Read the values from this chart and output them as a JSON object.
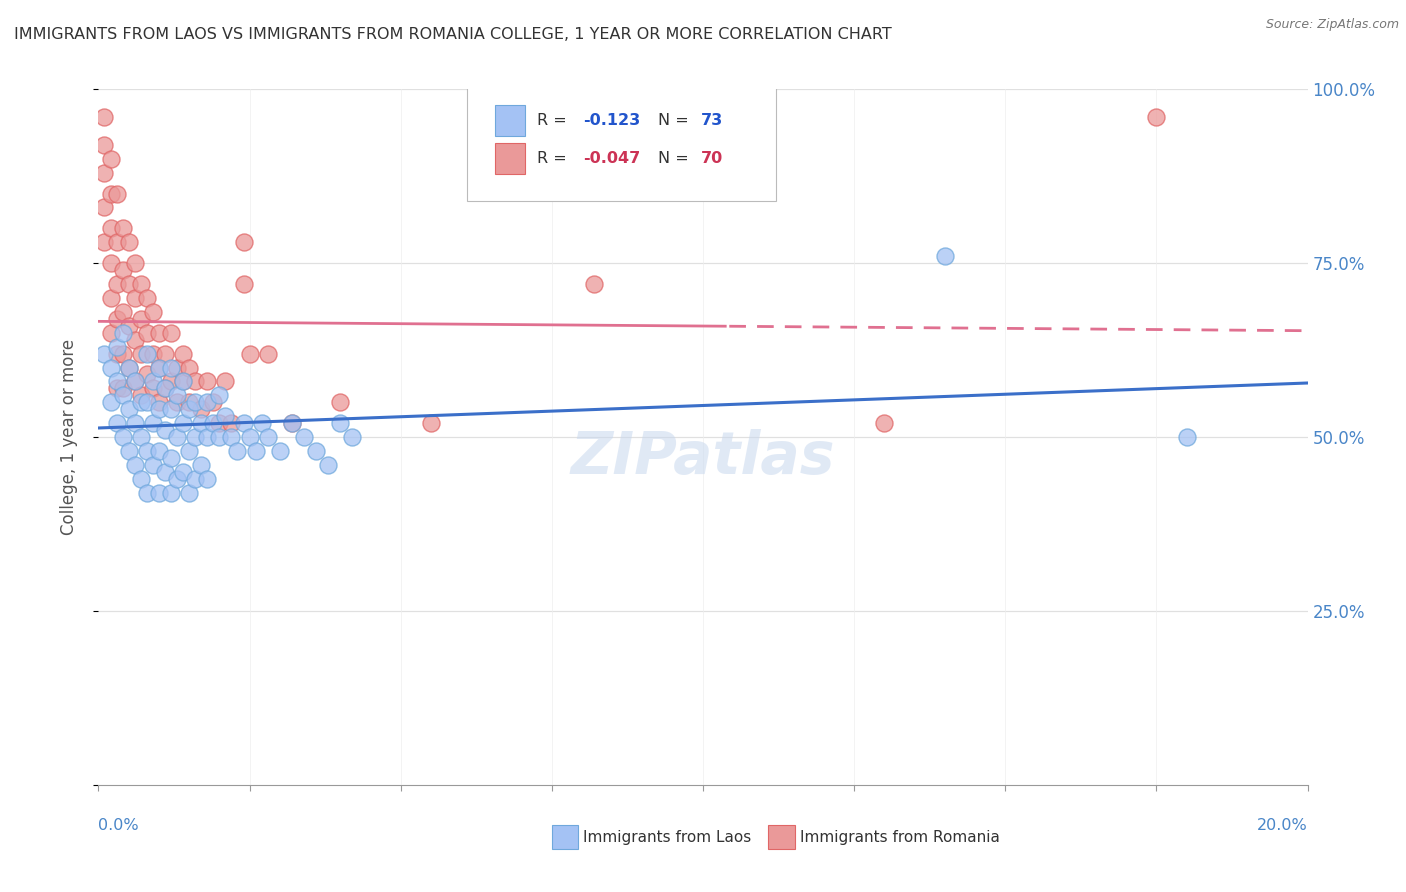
{
  "title": "IMMIGRANTS FROM LAOS VS IMMIGRANTS FROM ROMANIA COLLEGE, 1 YEAR OR MORE CORRELATION CHART",
  "source": "Source: ZipAtlas.com",
  "ylabel": "College, 1 year or more",
  "laos_color": "#a4c2f4",
  "laos_edge": "#6fa8dc",
  "romania_color": "#ea9999",
  "romania_edge": "#e06666",
  "background_color": "#ffffff",
  "grid_color": "#e0e0e0",
  "axis_color": "#4a86c8",
  "watermark": "ZIPatlas",
  "trend_blue": "#3b6fc9",
  "trend_pink": "#e07090",
  "laos_points": [
    [
      0.001,
      0.62
    ],
    [
      0.002,
      0.6
    ],
    [
      0.002,
      0.55
    ],
    [
      0.003,
      0.63
    ],
    [
      0.003,
      0.58
    ],
    [
      0.003,
      0.52
    ],
    [
      0.004,
      0.65
    ],
    [
      0.004,
      0.56
    ],
    [
      0.004,
      0.5
    ],
    [
      0.005,
      0.6
    ],
    [
      0.005,
      0.54
    ],
    [
      0.005,
      0.48
    ],
    [
      0.006,
      0.58
    ],
    [
      0.006,
      0.52
    ],
    [
      0.006,
      0.46
    ],
    [
      0.007,
      0.55
    ],
    [
      0.007,
      0.5
    ],
    [
      0.007,
      0.44
    ],
    [
      0.008,
      0.62
    ],
    [
      0.008,
      0.55
    ],
    [
      0.008,
      0.48
    ],
    [
      0.008,
      0.42
    ],
    [
      0.009,
      0.58
    ],
    [
      0.009,
      0.52
    ],
    [
      0.009,
      0.46
    ],
    [
      0.01,
      0.6
    ],
    [
      0.01,
      0.54
    ],
    [
      0.01,
      0.48
    ],
    [
      0.01,
      0.42
    ],
    [
      0.011,
      0.57
    ],
    [
      0.011,
      0.51
    ],
    [
      0.011,
      0.45
    ],
    [
      0.012,
      0.6
    ],
    [
      0.012,
      0.54
    ],
    [
      0.012,
      0.47
    ],
    [
      0.012,
      0.42
    ],
    [
      0.013,
      0.56
    ],
    [
      0.013,
      0.5
    ],
    [
      0.013,
      0.44
    ],
    [
      0.014,
      0.58
    ],
    [
      0.014,
      0.52
    ],
    [
      0.014,
      0.45
    ],
    [
      0.015,
      0.54
    ],
    [
      0.015,
      0.48
    ],
    [
      0.015,
      0.42
    ],
    [
      0.016,
      0.55
    ],
    [
      0.016,
      0.5
    ],
    [
      0.016,
      0.44
    ],
    [
      0.017,
      0.52
    ],
    [
      0.017,
      0.46
    ],
    [
      0.018,
      0.55
    ],
    [
      0.018,
      0.5
    ],
    [
      0.018,
      0.44
    ],
    [
      0.019,
      0.52
    ],
    [
      0.02,
      0.56
    ],
    [
      0.02,
      0.5
    ],
    [
      0.021,
      0.53
    ],
    [
      0.022,
      0.5
    ],
    [
      0.023,
      0.48
    ],
    [
      0.024,
      0.52
    ],
    [
      0.025,
      0.5
    ],
    [
      0.026,
      0.48
    ],
    [
      0.027,
      0.52
    ],
    [
      0.028,
      0.5
    ],
    [
      0.03,
      0.48
    ],
    [
      0.032,
      0.52
    ],
    [
      0.034,
      0.5
    ],
    [
      0.036,
      0.48
    ],
    [
      0.038,
      0.46
    ],
    [
      0.04,
      0.52
    ],
    [
      0.042,
      0.5
    ],
    [
      0.14,
      0.76
    ],
    [
      0.18,
      0.5
    ]
  ],
  "romania_points": [
    [
      0.001,
      0.96
    ],
    [
      0.001,
      0.92
    ],
    [
      0.001,
      0.88
    ],
    [
      0.001,
      0.83
    ],
    [
      0.001,
      0.78
    ],
    [
      0.002,
      0.9
    ],
    [
      0.002,
      0.85
    ],
    [
      0.002,
      0.8
    ],
    [
      0.002,
      0.75
    ],
    [
      0.002,
      0.7
    ],
    [
      0.002,
      0.65
    ],
    [
      0.003,
      0.85
    ],
    [
      0.003,
      0.78
    ],
    [
      0.003,
      0.72
    ],
    [
      0.003,
      0.67
    ],
    [
      0.003,
      0.62
    ],
    [
      0.003,
      0.57
    ],
    [
      0.004,
      0.8
    ],
    [
      0.004,
      0.74
    ],
    [
      0.004,
      0.68
    ],
    [
      0.004,
      0.62
    ],
    [
      0.004,
      0.57
    ],
    [
      0.005,
      0.78
    ],
    [
      0.005,
      0.72
    ],
    [
      0.005,
      0.66
    ],
    [
      0.005,
      0.6
    ],
    [
      0.006,
      0.75
    ],
    [
      0.006,
      0.7
    ],
    [
      0.006,
      0.64
    ],
    [
      0.006,
      0.58
    ],
    [
      0.007,
      0.72
    ],
    [
      0.007,
      0.67
    ],
    [
      0.007,
      0.62
    ],
    [
      0.007,
      0.56
    ],
    [
      0.008,
      0.7
    ],
    [
      0.008,
      0.65
    ],
    [
      0.008,
      0.59
    ],
    [
      0.009,
      0.68
    ],
    [
      0.009,
      0.62
    ],
    [
      0.009,
      0.57
    ],
    [
      0.01,
      0.65
    ],
    [
      0.01,
      0.6
    ],
    [
      0.01,
      0.55
    ],
    [
      0.011,
      0.62
    ],
    [
      0.011,
      0.57
    ],
    [
      0.012,
      0.65
    ],
    [
      0.012,
      0.58
    ],
    [
      0.013,
      0.6
    ],
    [
      0.013,
      0.55
    ],
    [
      0.014,
      0.62
    ],
    [
      0.014,
      0.58
    ],
    [
      0.015,
      0.6
    ],
    [
      0.015,
      0.55
    ],
    [
      0.016,
      0.58
    ],
    [
      0.017,
      0.54
    ],
    [
      0.018,
      0.58
    ],
    [
      0.019,
      0.55
    ],
    [
      0.02,
      0.52
    ],
    [
      0.021,
      0.58
    ],
    [
      0.022,
      0.52
    ],
    [
      0.024,
      0.78
    ],
    [
      0.024,
      0.72
    ],
    [
      0.025,
      0.62
    ],
    [
      0.028,
      0.62
    ],
    [
      0.032,
      0.52
    ],
    [
      0.04,
      0.55
    ],
    [
      0.055,
      0.52
    ],
    [
      0.082,
      0.72
    ],
    [
      0.13,
      0.52
    ],
    [
      0.175,
      0.96
    ]
  ]
}
